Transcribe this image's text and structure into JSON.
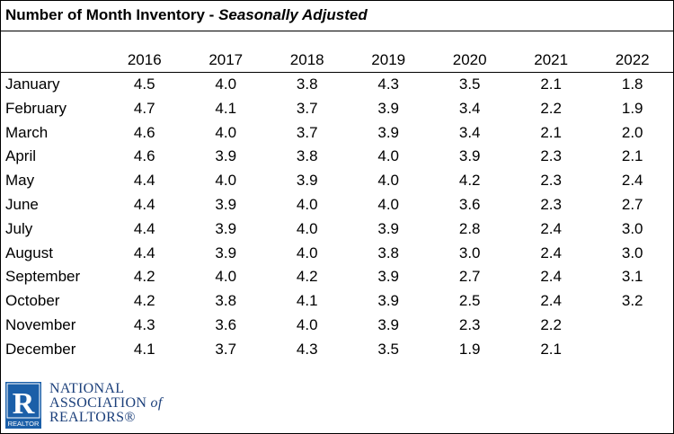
{
  "title": "Number of Month Inventory",
  "title_separator": " - ",
  "subtitle": "Seasonally Adjusted",
  "years": [
    "2016",
    "2017",
    "2018",
    "2019",
    "2020",
    "2021",
    "2022"
  ],
  "rows": [
    {
      "month": "January",
      "values": [
        "4.5",
        "4.0",
        "3.8",
        "4.3",
        "3.5",
        "2.1",
        "1.8"
      ]
    },
    {
      "month": "February",
      "values": [
        "4.7",
        "4.1",
        "3.7",
        "3.9",
        "3.4",
        "2.2",
        "1.9"
      ]
    },
    {
      "month": "March",
      "values": [
        "4.6",
        "4.0",
        "3.7",
        "3.9",
        "3.4",
        "2.1",
        "2.0"
      ]
    },
    {
      "month": "April",
      "values": [
        "4.6",
        "3.9",
        "3.8",
        "4.0",
        "3.9",
        "2.3",
        "2.1"
      ]
    },
    {
      "month": "May",
      "values": [
        "4.4",
        "4.0",
        "3.9",
        "4.0",
        "4.2",
        "2.3",
        "2.4"
      ]
    },
    {
      "month": "June",
      "values": [
        "4.4",
        "3.9",
        "4.0",
        "4.0",
        "3.6",
        "2.3",
        "2.7"
      ]
    },
    {
      "month": "July",
      "values": [
        "4.4",
        "3.9",
        "4.0",
        "3.9",
        "2.8",
        "2.4",
        "3.0"
      ]
    },
    {
      "month": "August",
      "values": [
        "4.4",
        "3.9",
        "4.0",
        "3.8",
        "3.0",
        "2.4",
        "3.0"
      ]
    },
    {
      "month": "September",
      "values": [
        "4.2",
        "4.0",
        "4.2",
        "3.9",
        "2.7",
        "2.4",
        "3.1"
      ]
    },
    {
      "month": "October",
      "values": [
        "4.2",
        "3.8",
        "4.1",
        "3.9",
        "2.5",
        "2.4",
        "3.2"
      ]
    },
    {
      "month": "November",
      "values": [
        "4.3",
        "3.6",
        "4.0",
        "3.9",
        "2.3",
        "2.2",
        ""
      ]
    },
    {
      "month": "December",
      "values": [
        "4.1",
        "3.7",
        "4.3",
        "3.5",
        "1.9",
        "2.1",
        ""
      ]
    }
  ],
  "logo": {
    "line1": "NATIONAL",
    "line2_main": "ASSOCIATION",
    "line2_of": "of",
    "line3": "REALTORS®",
    "badge_text": "REALTOR",
    "brand_color": "#1b5fa8"
  }
}
